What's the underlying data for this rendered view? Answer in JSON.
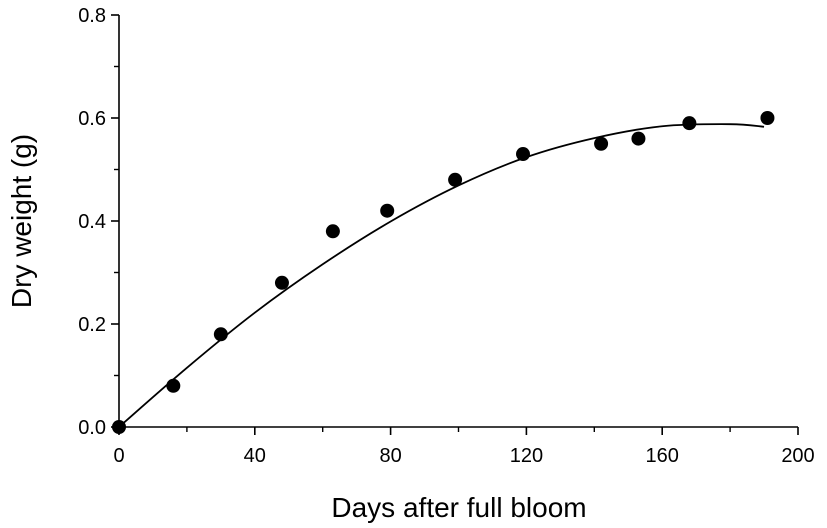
{
  "chart_data": {
    "type": "scatter",
    "title": "",
    "xlabel": "Days after full bloom",
    "ylabel": "Dry weight (g)",
    "xlim": [
      0,
      200
    ],
    "ylim": [
      0.0,
      0.8
    ],
    "x_ticks": [
      0,
      40,
      80,
      120,
      160,
      200
    ],
    "x_tick_labels": [
      "0",
      "40",
      "80",
      "120",
      "160",
      "200"
    ],
    "y_ticks": [
      0.0,
      0.2,
      0.4,
      0.6,
      0.8
    ],
    "y_tick_labels": [
      "0.0",
      "0.2",
      "0.4",
      "0.6",
      "0.8"
    ],
    "grid": false,
    "legend": "none",
    "colors": {
      "marker": "#000000",
      "line": "#000000",
      "axis": "#000000"
    },
    "series": [
      {
        "kind": "points",
        "x": [
          0,
          16,
          30,
          48,
          63,
          79,
          99,
          119,
          142,
          153,
          168,
          191
        ],
        "y": [
          0.0,
          0.08,
          0.18,
          0.28,
          0.38,
          0.42,
          0.48,
          0.53,
          0.55,
          0.56,
          0.59,
          0.6
        ]
      },
      {
        "kind": "fitted-curve",
        "x": [
          0,
          20,
          40,
          60,
          80,
          100,
          120,
          140,
          160,
          180,
          190
        ],
        "y": [
          0.0,
          0.115,
          0.222,
          0.316,
          0.399,
          0.469,
          0.524,
          0.561,
          0.584,
          0.588,
          0.583
        ]
      }
    ]
  }
}
